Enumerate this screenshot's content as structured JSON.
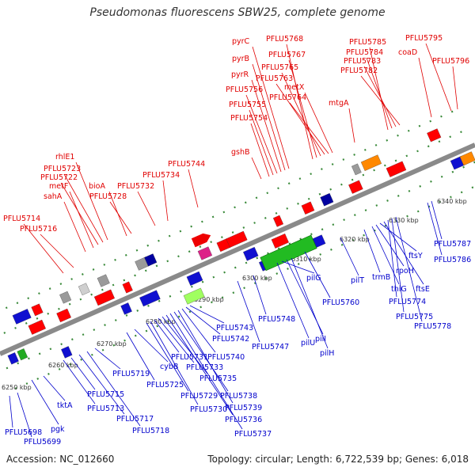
{
  "title": "Pseudomonas fluorescens SBW25, complete genome",
  "footer": {
    "accession": "Accession: NC_012660",
    "summary": "Topology: circular; Length: 6,722,539 bp; Genes: 6,018"
  },
  "colors": {
    "top_labels": "#e00000",
    "bottom_labels": "#0000cc",
    "axis": "#888888"
  },
  "ticks": [
    "6250 kbp",
    "6260 kbp",
    "6270 kbp",
    "6280 kbp",
    "6290 kbp",
    "6300 kbp",
    "6310 kbp",
    "6320 kbp",
    "6330 kbp",
    "6340 kbp"
  ],
  "top_labels": [
    "PFLU5714",
    "PFLU5716",
    "sahA",
    "metF",
    "PFLU5722",
    "PFLU5723",
    "rhlE1",
    "bioA",
    "PFLU5728",
    "PFLU5732",
    "PFLU5734",
    "PFLU5744",
    "gshB",
    "PFLU5754",
    "PFLU5755",
    "PFLU5756",
    "pyrR",
    "pyrB",
    "pyrC",
    "PFLU5768",
    "PFLU5767",
    "PFLU5765",
    "PFLU5763",
    "metX",
    "PFLU5764",
    "mtgA",
    "PFLU5785",
    "PFLU5784",
    "PFLU5783",
    "PFLU5782",
    "PFLU5795",
    "coaD",
    "PFLU5796"
  ],
  "bottom_labels": [
    "PFLU5698",
    "PFLU5699",
    "pgk",
    "tktA",
    "PFLU5713",
    "PFLU5715",
    "PFLU5717",
    "PFLU5718",
    "PFLU5719",
    "PFLU5725",
    "cybB",
    "PFLU5729",
    "PFLU5730",
    "PFLU5731",
    "PFLU5733",
    "PFLU5735",
    "PFLU5736",
    "PFLU5737",
    "PFLU5738",
    "PFLU5739",
    "PFLU5740",
    "PFLU5742",
    "PFLU5743",
    "PFLU5747",
    "PFLU5748",
    "pilU",
    "pilG",
    "pilI",
    "pilH",
    "PFLU5760",
    "pilT",
    "trmB",
    "thiG",
    "rpoH",
    "ftsY",
    "ftsE",
    "PFLU5774",
    "PFLU5775",
    "PFLU5778",
    "PFLU5786",
    "PFLU5787"
  ]
}
